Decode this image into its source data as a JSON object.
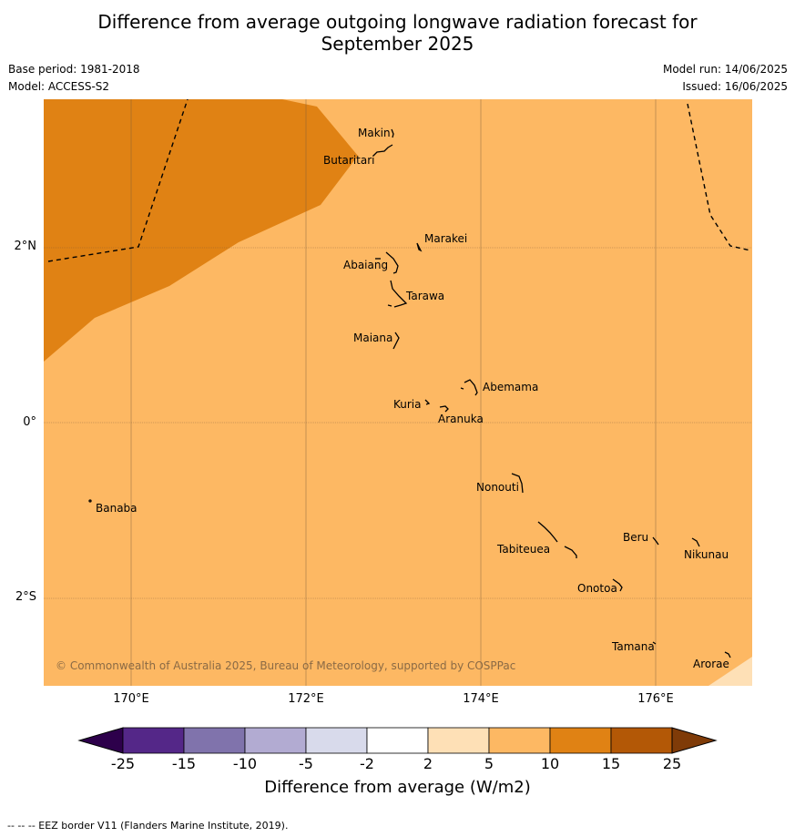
{
  "title_line1": "Difference from average outgoing longwave radiation forecast for",
  "title_line2": "September 2025",
  "base_period": "Base period: 1981-2018",
  "model": "Model: ACCESS-S2",
  "model_run": "Model run: 14/06/2025",
  "issued": "Issued: 16/06/2025",
  "lat_labels": [
    "2°N",
    "0°",
    "2°S"
  ],
  "lon_labels": [
    "170°E",
    "172°E",
    "174°E",
    "176°E"
  ],
  "islands": {
    "makin": "Makin",
    "butaritari": "Butaritari",
    "marakei": "Marakei",
    "abaiang": "Abaiang",
    "tarawa": "Tarawa",
    "maiana": "Maiana",
    "abemama": "Abemama",
    "kuria": "Kuria",
    "aranuka": "Aranuka",
    "nonouti": "Nonouti",
    "banaba": "Banaba",
    "beru": "Beru",
    "nikunau": "Nikunau",
    "tabiteuea": "Tabiteuea",
    "onotoa": "Onotoa",
    "tamana": "Tamana",
    "arorae": "Arorae"
  },
  "copyright": "© Commonwealth of Australia 2025, Bureau of Meteorology, supported by COSPPac",
  "colorbar": {
    "ticks": [
      "-25",
      "-15",
      "-10",
      "-5",
      "-2",
      "2",
      "5",
      "10",
      "15",
      "25"
    ],
    "colors": [
      "#2d004b",
      "#542788",
      "#8073ac",
      "#b2abd2",
      "#d8daeb",
      "#ffffff",
      "#fee0b6",
      "#fdb863",
      "#e08214",
      "#b35806",
      "#7f3b08"
    ],
    "label": "Difference from average (W/m2)"
  },
  "footnote": "--  --  -- EEZ border V11 (Flanders Marine Institute, 2019)."
}
